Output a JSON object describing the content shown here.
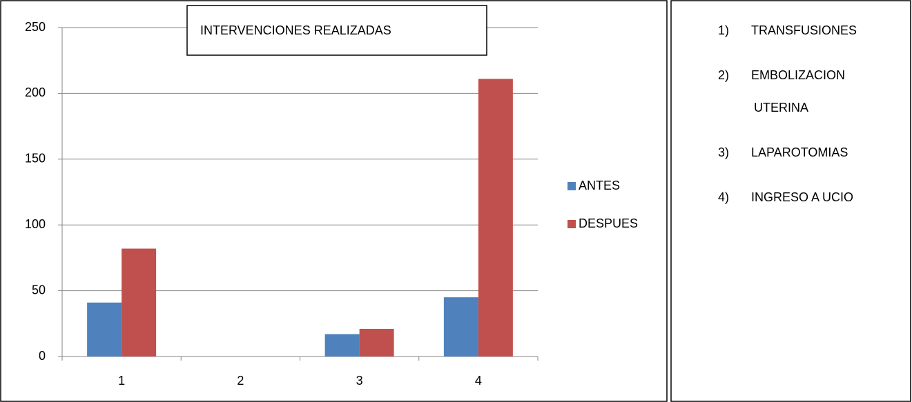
{
  "chart_data": {
    "type": "bar",
    "title": "INTERVENCIONES REALIZADAS",
    "categories": [
      "1",
      "2",
      "3",
      "4"
    ],
    "series": [
      {
        "name": "ANTES",
        "color": "#4f81bd",
        "values": [
          41,
          0,
          17,
          45
        ]
      },
      {
        "name": "DESPUES",
        "color": "#c0504d",
        "values": [
          82,
          0,
          21,
          211
        ]
      }
    ],
    "ylim": [
      0,
      250
    ],
    "yticks": [
      0,
      50,
      100,
      150,
      200,
      250
    ],
    "grid": true
  },
  "notes": [
    {
      "number": "1)",
      "lines": [
        "TRANSFUSIONES"
      ]
    },
    {
      "number": "2)",
      "lines": [
        "EMBOLIZACION",
        "UTERINA"
      ]
    },
    {
      "number": "3)",
      "lines": [
        "LAPAROTOMIAS"
      ]
    },
    {
      "number": "4)",
      "lines": [
        "INGRESO A UCIO"
      ]
    }
  ]
}
